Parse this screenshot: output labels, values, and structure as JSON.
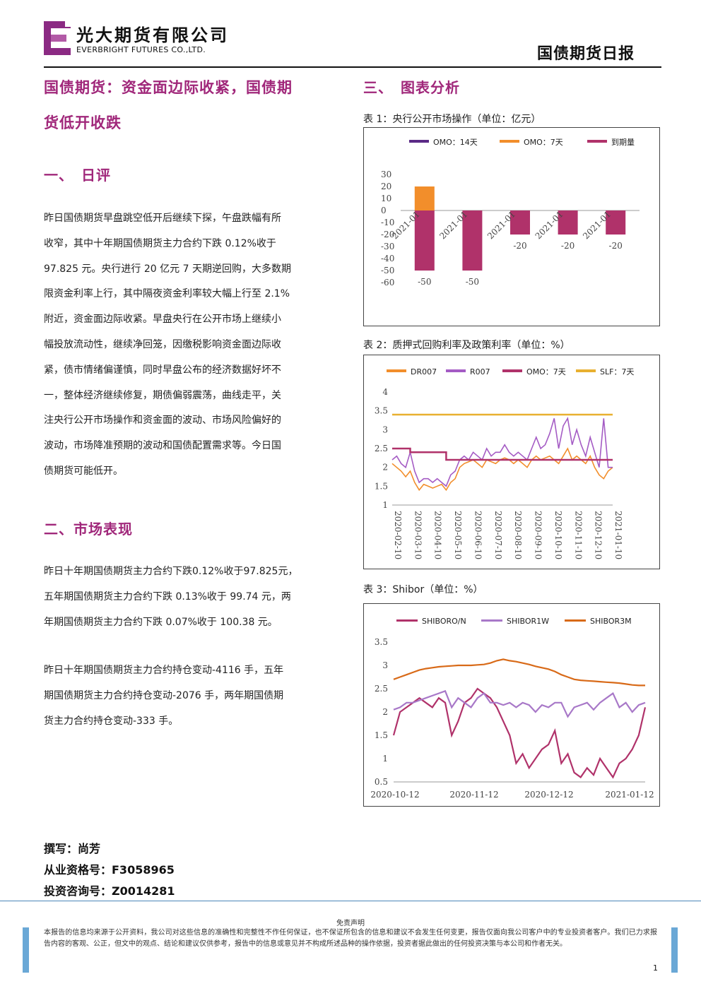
{
  "header": {
    "logo_cn": "光大期货有限公司",
    "logo_en": "EVERBRIGHT FUTURES CO.,LTD.",
    "doc_title": "国债期货日报"
  },
  "article": {
    "title_line1": "国债期货：资金面边际收紧，国债期",
    "title_line2": "货低开收跌",
    "s1_heading": "一、　日评",
    "s1_lines": [
      "昨日国债期货早盘跳空低开后继续下探，午盘跌幅有所",
      "收窄，其中十年期国债期货主力合约下跌 0.12%收于",
      "97.825 元。央行进行 20 亿元 7 天期逆回购，大多数期",
      "限资金利率上行，其中隔夜资金利率较大幅上行至 2.1%",
      "附近，资金面边际收紧。早盘央行在公开市场上继续小",
      "幅投放流动性，继续净回笼，因缴税影响资金面边际收",
      "紧，债市情绪偏谨慎，同时早盘公布的经济数据好坏不",
      "一，整体经济继续修复，期债偏弱震荡，曲线走平，关",
      "注央行公开市场操作和资金面的波动、市场风险偏好的",
      "波动，市场降准预期的波动和国债配置需求等。今日国",
      "债期货可能低开。"
    ],
    "s2_heading": "二、市场表现",
    "s2_p1_lines": [
      "昨日十年期国债期货主力合约下跌0.12%收于97.825元，",
      "五年期国债期货主力合约下跌 0.13%收于 99.74 元，两",
      "年期国债期货主力合约下跌 0.07%收于 100.38 元。"
    ],
    "s2_p2_lines": [
      "昨日十年期国债期货主力合约持仓变动-4116 手，五年",
      "期国债期货主力合约持仓变动-2076 手，两年期国债期",
      "货主力合约持仓变动-333 手。"
    ],
    "s3_heading": "三、　图表分析"
  },
  "tables": {
    "t1": "表 1：央行公开市场操作（单位：亿元）",
    "t2": "表 2：质押式回购利率及政策利率（单位：%）",
    "t3": "表 3：Shibor（单位：%）"
  },
  "author": {
    "writer": "撰写：尚芳",
    "qualification": "从业资格号：F3058965",
    "consult": "投资咨询号：Z0014281"
  },
  "footer": {
    "title": "免责声明",
    "text": "本报告的信息均来源于公开资料，我公司对这些信息的准确性和完整性不作任何保证，也不保证所包含的信息和建议不会发生任何变更，报告仅面向我公司客户中的专业投资者客户。我们已力求报告内容的客观、公正，但文中的观点、结论和建议仅供参考，报告中的信息或意见并不构成所述品种的操作依据，投资者据此做出的任何投资决策与本公司和作者无关。",
    "page": "1"
  },
  "colors": {
    "brand": "#a0277a",
    "omo14": "#5b2a86",
    "omo7": "#f28e2b",
    "maturity": "#b0326a",
    "dr007": "#f28e2b",
    "r007": "#a45bc4",
    "slf7": "#e8b030",
    "shibor_on": "#b0326a",
    "shibor_1w": "#a878c8",
    "shibor_3m": "#d86a18"
  },
  "chart_data": [
    {
      "type": "bar",
      "categories": [
        "2021-01",
        "2021-01",
        "2021-01",
        "2021-01",
        "2021-01"
      ],
      "series": [
        {
          "name": "OMO：14天",
          "values": [
            0,
            0,
            0,
            0,
            0
          ]
        },
        {
          "name": "OMO：7天",
          "values": [
            20,
            0,
            0,
            0,
            0
          ]
        },
        {
          "name": "到期量",
          "values": [
            -50,
            -50,
            -20,
            -20,
            -20
          ]
        }
      ],
      "data_labels": [
        "-50",
        "-50",
        "-20",
        "-20",
        "-20"
      ],
      "yticks": [
        "30",
        "20",
        "10",
        "0",
        "-10",
        "-20",
        "-30",
        "-40",
        "-50",
        "-60"
      ],
      "ylim": [
        -60,
        30
      ],
      "legend": "top"
    },
    {
      "type": "line",
      "x_ticks": [
        "2020-02-10",
        "2020-03-10",
        "2020-04-10",
        "2020-05-10",
        "2020-06-10",
        "2020-07-10",
        "2020-08-10",
        "2020-09-10",
        "2020-10-10",
        "2020-11-10",
        "2020-12-10",
        "2021-01-10"
      ],
      "yticks": [
        "4",
        "3.5",
        "3",
        "2.5",
        "2",
        "1.5",
        "1"
      ],
      "ylim": [
        1,
        4
      ],
      "series": [
        {
          "name": "DR007",
          "values": [
            2.1,
            2.0,
            1.9,
            1.75,
            1.9,
            1.6,
            1.4,
            1.55,
            1.5,
            1.45,
            1.5,
            1.55,
            1.4,
            1.6,
            1.7,
            2.0,
            2.1,
            2.15,
            2.2,
            2.1,
            2.0,
            2.2,
            2.15,
            2.1,
            2.2,
            2.25,
            2.2,
            2.1,
            2.2,
            2.1,
            2.0,
            2.2,
            2.3,
            2.2,
            2.25,
            2.3,
            2.2,
            2.1,
            2.3,
            2.5,
            2.2,
            2.3,
            2.2,
            2.1,
            2.3,
            2.0,
            1.8,
            1.7,
            1.9,
            2.0
          ]
        },
        {
          "name": "R007",
          "values": [
            2.2,
            2.3,
            2.1,
            2.0,
            2.4,
            1.9,
            1.6,
            1.7,
            1.7,
            1.6,
            1.7,
            1.6,
            1.5,
            1.8,
            1.9,
            2.2,
            2.3,
            2.2,
            2.4,
            2.3,
            2.2,
            2.5,
            2.3,
            2.4,
            2.4,
            2.6,
            2.4,
            2.3,
            2.4,
            2.3,
            2.2,
            2.5,
            2.8,
            2.5,
            2.6,
            2.9,
            3.3,
            2.5,
            3.1,
            3.3,
            2.6,
            3.0,
            2.6,
            2.3,
            2.8,
            2.4,
            2.0,
            3.3,
            2.0,
            2.0
          ]
        },
        {
          "name": "OMO：7天",
          "values": [
            2.5,
            2.5,
            2.5,
            2.5,
            2.4,
            2.4,
            2.4,
            2.4,
            2.4,
            2.4,
            2.4,
            2.4,
            2.2,
            2.2,
            2.2,
            2.2,
            2.2,
            2.2,
            2.2,
            2.2,
            2.2,
            2.2,
            2.2,
            2.2,
            2.2,
            2.2,
            2.2,
            2.2,
            2.2,
            2.2,
            2.2,
            2.2,
            2.2,
            2.2,
            2.2,
            2.2,
            2.2,
            2.2,
            2.2,
            2.2,
            2.2,
            2.2,
            2.2,
            2.2,
            2.2,
            2.2,
            2.2,
            2.2,
            2.2,
            2.2
          ]
        },
        {
          "name": "SLF：7天",
          "values": [
            3.4,
            3.4,
            3.4,
            3.4,
            3.4,
            3.4,
            3.4,
            3.4,
            3.4,
            3.4,
            3.4,
            3.4,
            3.4,
            3.4,
            3.4,
            3.4,
            3.4,
            3.4,
            3.4,
            3.4,
            3.4,
            3.4,
            3.4,
            3.4,
            3.4,
            3.4,
            3.4,
            3.4,
            3.4,
            3.4,
            3.4,
            3.4,
            3.4,
            3.4,
            3.4,
            3.4,
            3.4,
            3.4,
            3.4,
            3.4,
            3.4,
            3.4,
            3.4,
            3.4,
            3.4,
            3.4,
            3.4,
            3.4,
            3.4,
            3.4
          ]
        }
      ],
      "legend": "top"
    },
    {
      "type": "line",
      "x_ticks": [
        "2020-10-12",
        "2020-11-12",
        "2020-12-12",
        "2021-01-12"
      ],
      "yticks": [
        "3.5",
        "3",
        "2.5",
        "2",
        "1.5",
        "1",
        "0.5"
      ],
      "ylim": [
        0.5,
        3.5
      ],
      "series": [
        {
          "name": "SHIBORO/N",
          "values": [
            1.5,
            2.0,
            2.1,
            2.2,
            2.3,
            2.2,
            2.1,
            2.3,
            2.2,
            1.5,
            1.8,
            2.2,
            2.3,
            2.5,
            2.4,
            2.3,
            2.1,
            1.8,
            1.5,
            0.9,
            1.1,
            0.8,
            1.0,
            1.2,
            1.3,
            1.6,
            0.9,
            1.1,
            0.7,
            0.6,
            0.8,
            0.65,
            1.0,
            0.8,
            0.6,
            0.9,
            1.0,
            1.2,
            1.5,
            2.1
          ]
        },
        {
          "name": "SHIBOR1W",
          "values": [
            2.05,
            2.1,
            2.2,
            2.2,
            2.25,
            2.3,
            2.35,
            2.4,
            2.45,
            2.1,
            2.3,
            2.2,
            2.1,
            2.3,
            2.4,
            2.2,
            2.2,
            2.15,
            2.2,
            2.1,
            2.2,
            2.15,
            2.0,
            2.15,
            2.1,
            2.2,
            2.2,
            1.9,
            2.1,
            2.15,
            2.2,
            2.05,
            2.2,
            2.3,
            2.4,
            2.1,
            2.2,
            2.0,
            2.15,
            2.2
          ]
        },
        {
          "name": "SHIBOR3M",
          "values": [
            2.7,
            2.75,
            2.8,
            2.85,
            2.9,
            2.93,
            2.95,
            2.97,
            2.98,
            2.99,
            3.0,
            3.0,
            3.0,
            3.01,
            3.02,
            3.05,
            3.1,
            3.13,
            3.1,
            3.08,
            3.05,
            3.02,
            2.98,
            2.95,
            2.92,
            2.87,
            2.8,
            2.75,
            2.7,
            2.68,
            2.67,
            2.66,
            2.65,
            2.64,
            2.63,
            2.62,
            2.6,
            2.58,
            2.57,
            2.57
          ]
        }
      ],
      "legend": "top"
    }
  ]
}
